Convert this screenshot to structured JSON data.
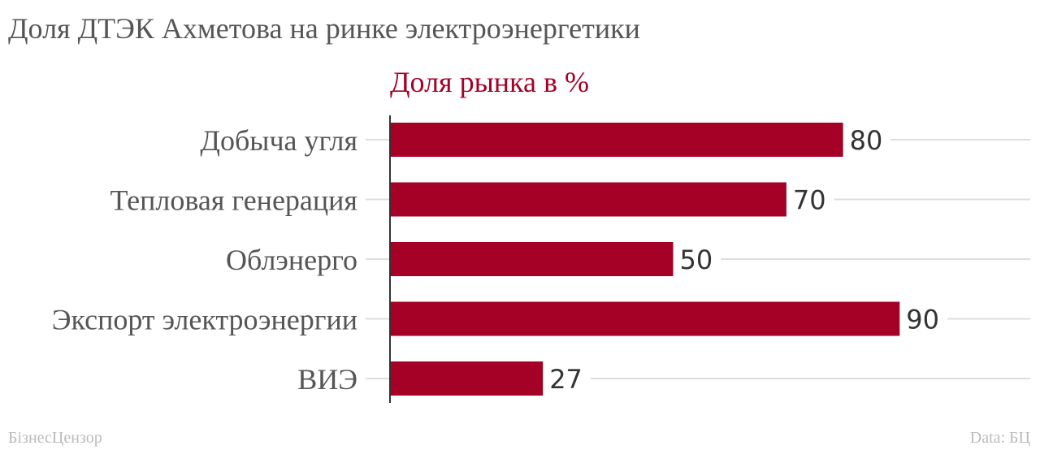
{
  "title": "Доля ДТЭК Ахметова на ринке электроэнергетики",
  "footer": {
    "source_brand": "БізнесЦензор",
    "credit": "Data: БЦ"
  },
  "colors": {
    "bar": "#a50026",
    "subtitle": "#a50026",
    "text": "#555555",
    "gridline": "#dddddd",
    "axis": "#333333"
  },
  "chart_data": {
    "type": "bar",
    "orientation": "horizontal",
    "title": "Доля рынка в %",
    "categories": [
      "Добыча угля",
      "Тепловая генерация",
      "Облэнерго",
      "Экспорт электроэнергии",
      "ВИЭ"
    ],
    "values": [
      80,
      70,
      50,
      90,
      27
    ],
    "xlim": [
      0,
      100
    ],
    "xlabel": "",
    "ylabel": "",
    "grid": true,
    "data_labels": true
  }
}
